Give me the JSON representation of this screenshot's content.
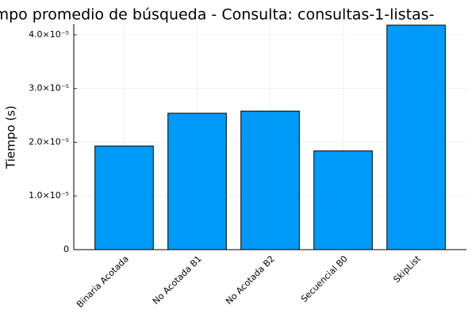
{
  "chart_data": {
    "type": "bar",
    "title": "mpo promedio de búsqueda - Consulta: consultas-1-listas-",
    "y_label": "Tiempo (s)",
    "categories": [
      "Binaria Acotada",
      "No Acotada B1",
      "No Acotada B2",
      "Secuencial B0",
      "SkipList"
    ],
    "values": [
      1.93e-05,
      2.54e-05,
      2.58e-05,
      1.84e-05,
      4.18e-05
    ],
    "color": "#009af9",
    "ylim": [
      0,
      4.2e-05
    ],
    "yticks": [
      0,
      {
        "value": 1e-05,
        "label": "1.0×10⁻⁵"
      },
      {
        "value": 2e-05,
        "label": "2.0×10⁻⁵"
      },
      {
        "value": 3e-05,
        "label": "3.0×10⁻⁵"
      },
      {
        "value": 4e-05,
        "label": "4.0×10⁻⁵"
      }
    ],
    "grid": true
  }
}
